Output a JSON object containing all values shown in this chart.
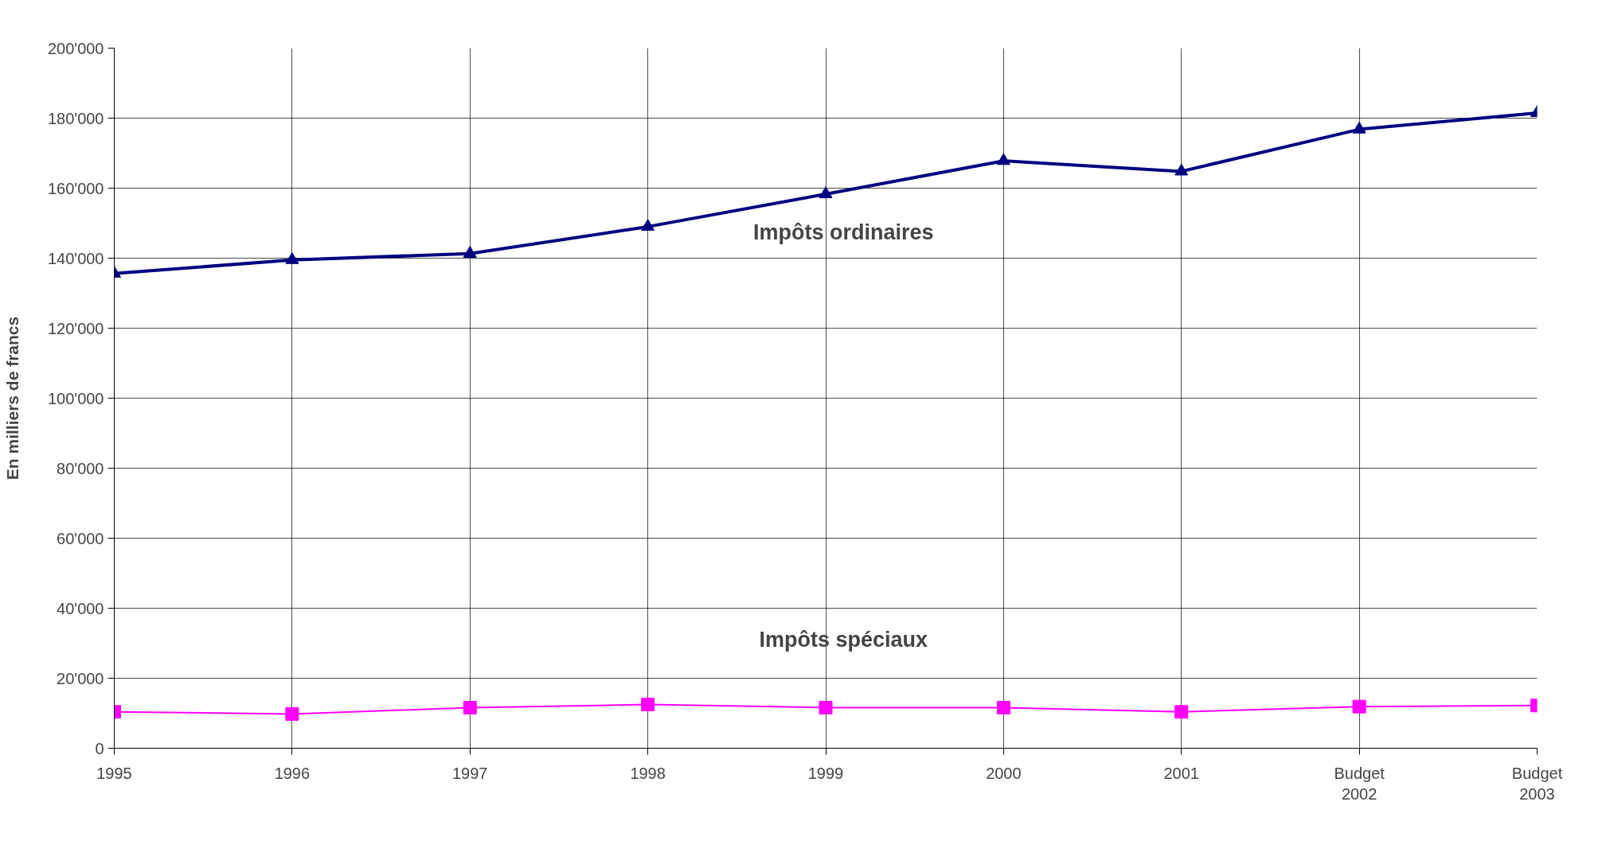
{
  "chart_data": {
    "type": "line",
    "ylabel": "En milliers de francs",
    "categories": [
      "1995",
      "1996",
      "1997",
      "1998",
      "1999",
      "2000",
      "2001",
      "Budget 2002",
      "Budget 2003"
    ],
    "series": [
      {
        "name": "Impôts ordinaires",
        "color": "#000080",
        "marker": "triangle",
        "values": [
          135600,
          139500,
          141300,
          149000,
          158300,
          167800,
          164800,
          176800,
          181500
        ]
      },
      {
        "name": "Impôts spéciaux",
        "color": "#ff00ff",
        "marker": "square",
        "values": [
          10400,
          9800,
          11600,
          12500,
          11600,
          11600,
          10400,
          11900,
          12200
        ]
      }
    ],
    "ylim": [
      0,
      200000
    ],
    "yticks": [
      {
        "value": 0,
        "label": "0"
      },
      {
        "value": 20000,
        "label": "20'000"
      },
      {
        "value": 40000,
        "label": "40'000"
      },
      {
        "value": 60000,
        "label": "60'000"
      },
      {
        "value": 80000,
        "label": "80'000"
      },
      {
        "value": 100000,
        "label": "100'000"
      },
      {
        "value": 120000,
        "label": "120'000"
      },
      {
        "value": 140000,
        "label": "140'000"
      },
      {
        "value": 160000,
        "label": "160'000"
      },
      {
        "value": 180000,
        "label": "180'000"
      },
      {
        "value": 200000,
        "label": "200'000"
      }
    ],
    "grid": true
  }
}
